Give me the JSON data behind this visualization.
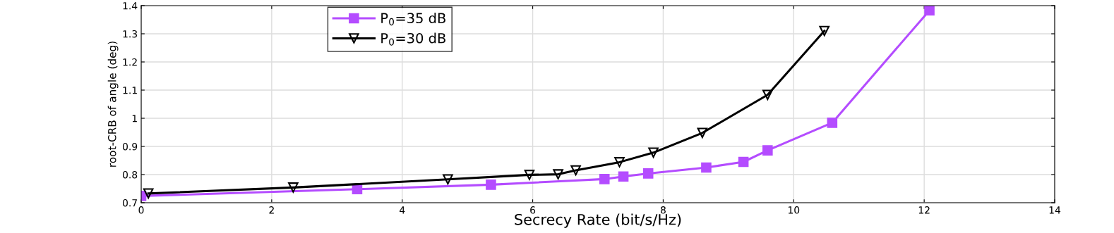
{
  "chart_data": {
    "type": "line",
    "xlabel": "Secrecy Rate (bit/s/Hz)",
    "ylabel": "root-CRB of angle (deg)",
    "xlim": [
      0,
      14
    ],
    "xticks": [
      0,
      2,
      4,
      6,
      8,
      10,
      12,
      14
    ],
    "ylim": [
      0.7,
      1.4
    ],
    "yticks": [
      0.7,
      0.8,
      0.9,
      1,
      1.1,
      1.2,
      1.3,
      1.4
    ],
    "grid": true,
    "legend": "top",
    "line_style": "solid",
    "series": [
      {
        "name": "P$_{0}$=35 dB",
        "color": "#b44cff",
        "marker": "square",
        "x": [
          0.0,
          3.31,
          5.36,
          7.1,
          7.39,
          7.77,
          8.66,
          9.23,
          9.6,
          10.59,
          12.08
        ],
        "values": [
          0.724,
          0.748,
          0.764,
          0.784,
          0.793,
          0.804,
          0.825,
          0.845,
          0.886,
          0.984,
          1.383
        ]
      },
      {
        "name": "P$_{0}$=30 dB",
        "color": "#000000",
        "marker": "triangle",
        "x": [
          0.11,
          2.33,
          4.7,
          5.95,
          6.39,
          6.66,
          7.33,
          7.85,
          8.6,
          9.6,
          10.47
        ],
        "values": [
          0.733,
          0.754,
          0.783,
          0.799,
          0.801,
          0.815,
          0.844,
          0.878,
          0.948,
          1.083,
          1.31
        ]
      }
    ]
  }
}
